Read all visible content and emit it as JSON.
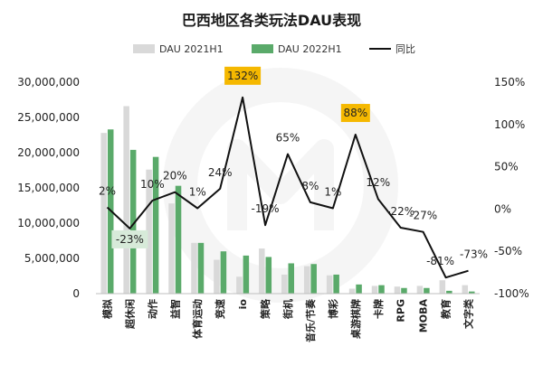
{
  "chart_data": {
    "type": "bar",
    "title": "巴西地区各类玩法DAU表现",
    "categories": [
      "模拟",
      "超休闲",
      "动作",
      "益智",
      "体育运动",
      "竞速",
      "io",
      "策略",
      "街机",
      "音乐/节奏",
      "博彩",
      "桌游棋牌",
      "卡牌",
      "RPG",
      "MOBA",
      "教育",
      "文字类"
    ],
    "series": [
      {
        "name": "DAU 2021H1",
        "axis": "left",
        "kind": "bar",
        "color": "#d9d9d9",
        "values": [
          22800000,
          26600000,
          17600000,
          12800000,
          7200000,
          4800000,
          2400000,
          6400000,
          2700000,
          3900000,
          2600000,
          700000,
          1100000,
          1000000,
          1100000,
          1900000,
          1200000
        ]
      },
      {
        "name": "DAU 2022H1",
        "axis": "left",
        "kind": "bar",
        "color": "#5aaa6a",
        "values": [
          23300000,
          20400000,
          19400000,
          15300000,
          7200000,
          6000000,
          5400000,
          5200000,
          4300000,
          4200000,
          2700000,
          1300000,
          1200000,
          800000,
          800000,
          400000,
          300000
        ]
      },
      {
        "name": "同比",
        "axis": "right",
        "kind": "line",
        "color": "#111111",
        "values": [
          2,
          -23,
          10,
          20,
          1,
          24,
          132,
          -19,
          65,
          8,
          1,
          88,
          12,
          -22,
          -27,
          -81,
          -73
        ]
      }
    ],
    "data_labels": [
      "2%",
      "-23%",
      "10%",
      "20%",
      "1%",
      "24%",
      "132%",
      "-19%",
      "65%",
      "8%",
      "1%",
      "88%",
      "12%",
      "-22%",
      "-27%",
      "-81%",
      "-73%"
    ],
    "highlighted_labels": [
      1,
      6,
      11
    ],
    "highlight_colors": {
      "gold": "#f5b800",
      "green": "#d7ead9"
    },
    "y_left": {
      "min": 0,
      "max": 30000000,
      "ticks": [
        "0",
        "5,000,000",
        "10,000,000",
        "15,000,000",
        "20,000,000",
        "25,000,000",
        "30,000,000"
      ]
    },
    "y_right": {
      "min": -100,
      "max": 150,
      "ticks": [
        "-100%",
        "-50%",
        "0%",
        "50%",
        "100%",
        "150%"
      ]
    },
    "legend": {
      "position": "top",
      "entries": [
        "DAU 2021H1",
        "DAU 2022H1",
        "同比"
      ]
    },
    "grid": false
  }
}
